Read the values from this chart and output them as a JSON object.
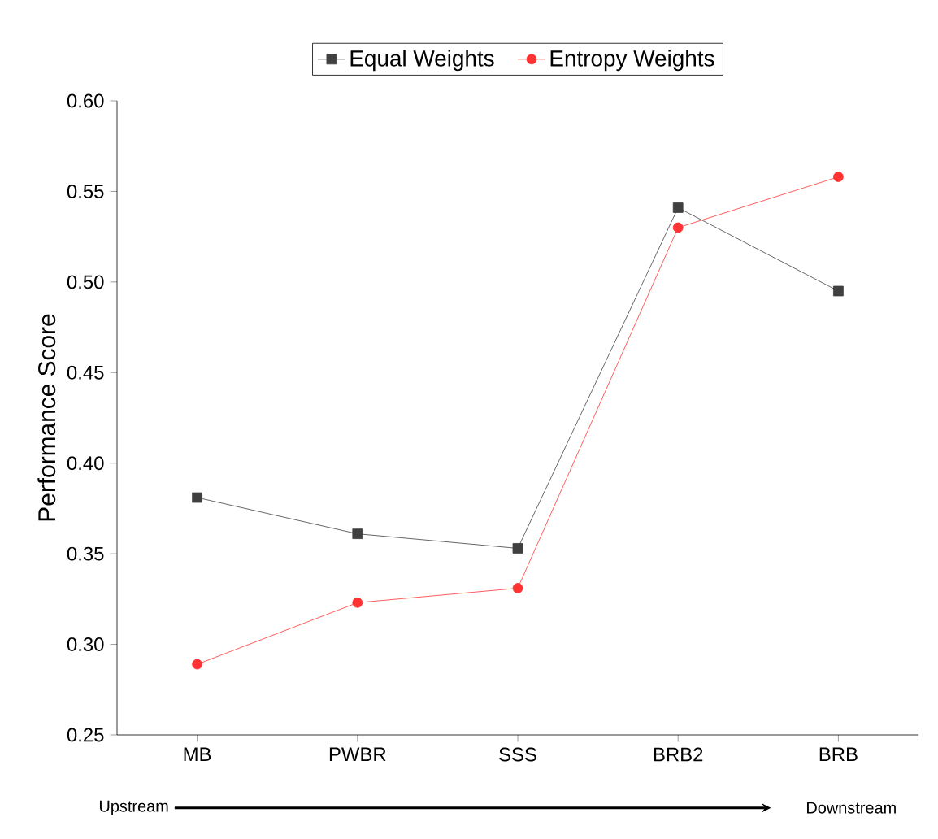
{
  "chart_data": {
    "type": "line",
    "ylabel": "Performance Score",
    "categories": [
      "MB",
      "PWBR",
      "SSS",
      "BRB2",
      "BRB"
    ],
    "series": [
      {
        "name": "Equal Weights",
        "color": "#404040",
        "marker": "square",
        "values": [
          0.381,
          0.361,
          0.353,
          0.541,
          0.495
        ]
      },
      {
        "name": "Entropy Weights",
        "color": "#ff3333",
        "marker": "circle",
        "values": [
          0.289,
          0.323,
          0.331,
          0.53,
          0.558
        ]
      }
    ],
    "ylim": [
      0.25,
      0.6
    ],
    "yticks": [
      {
        "value": 0.25,
        "label": "0.25"
      },
      {
        "value": 0.3,
        "label": "0.30"
      },
      {
        "value": 0.35,
        "label": "0.35"
      },
      {
        "value": 0.4,
        "label": "0.40"
      },
      {
        "value": 0.45,
        "label": "0.45"
      },
      {
        "value": 0.5,
        "label": "0.50"
      },
      {
        "value": 0.55,
        "label": "0.55"
      },
      {
        "value": 0.6,
        "label": "0.60"
      }
    ],
    "legend": "top",
    "grid": false,
    "annotations": [
      "Upstream",
      "Downstream"
    ]
  }
}
